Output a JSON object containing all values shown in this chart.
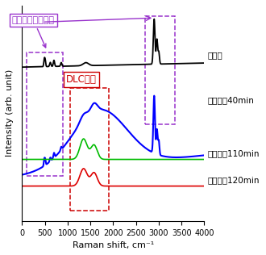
{
  "xlabel": "Raman shift, cm⁻¹",
  "ylabel": "Intensity (arb. unit)",
  "xlim": [
    0,
    4000
  ],
  "x_ticks": [
    0,
    500,
    1000,
    1500,
    2000,
    2500,
    3000,
    3500,
    4000
  ],
  "legend_labels": [
    "未処理",
    "処理時間40min",
    "処理時間110min",
    "処理時間120min"
  ],
  "line_colors": [
    "black",
    "#0000ff",
    "#00bb00",
    "#dd0000"
  ],
  "label_silicone": "シリコンゴム由来",
  "label_dlc": "DLC由来",
  "silicone_box_color": "#9933cc",
  "dlc_box_color": "#cc0000",
  "silicone_label_color": "#9933cc",
  "dlc_label_color": "#cc0000"
}
